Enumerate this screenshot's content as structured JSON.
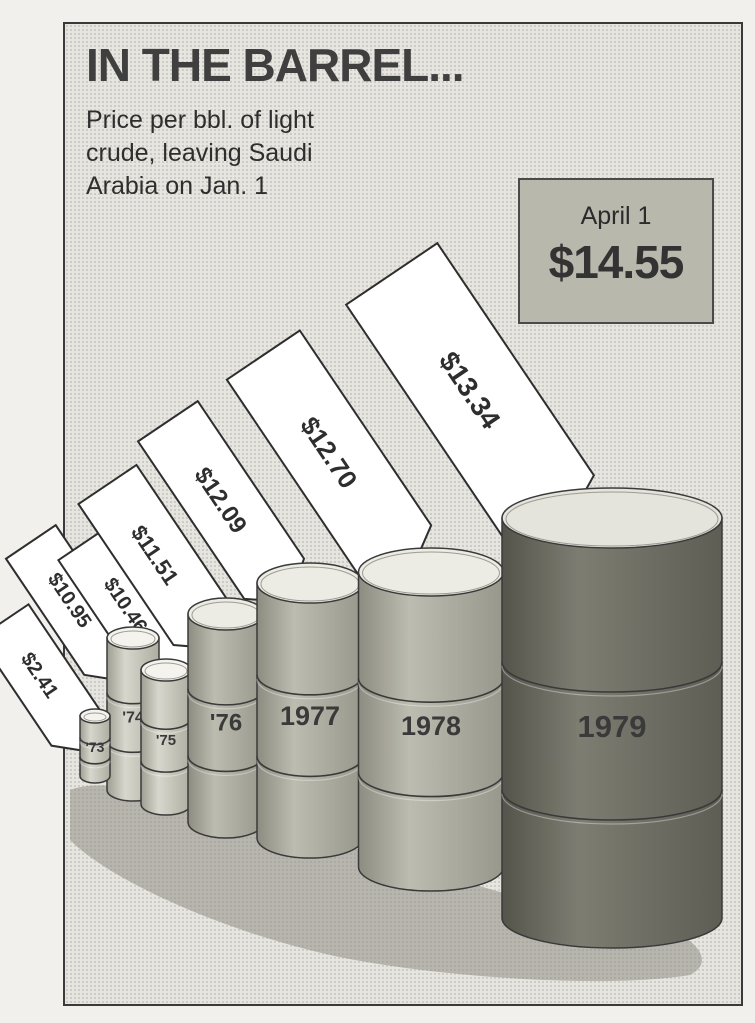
{
  "header": {
    "title": "IN THE BARREL...",
    "subtitle": "Price per bbl. of light crude, leaving Saudi Arabia on Jan. 1"
  },
  "callout": {
    "date": "April 1",
    "price": "$14.55"
  },
  "chart_data": {
    "type": "bar",
    "style": "pictograph-barrels",
    "title": "IN THE BARREL...",
    "subtitle": "Price per bbl. of light crude, leaving Saudi Arabia on Jan. 1",
    "categories": [
      "'73",
      "'74",
      "'75",
      "'76",
      "1977",
      "1978",
      "1979"
    ],
    "values": [
      2.41,
      10.95,
      10.46,
      11.51,
      12.09,
      12.7,
      13.34
    ],
    "value_labels": [
      "$2.41",
      "$10.95",
      "$10.46",
      "$11.51",
      "$12.09",
      "$12.70",
      "$13.34"
    ],
    "unit": "$ per barrel",
    "annotation": {
      "date": "April 1",
      "value": 14.55,
      "label": "$14.55"
    },
    "grid": false,
    "legend": "none",
    "colors": {
      "barrel_light": "#c9c8bd",
      "barrel_mid": "#a9a89c",
      "barrel_dark": "#6f6e64",
      "tag": "#ffffff",
      "callout": "#b9b8ad"
    }
  }
}
